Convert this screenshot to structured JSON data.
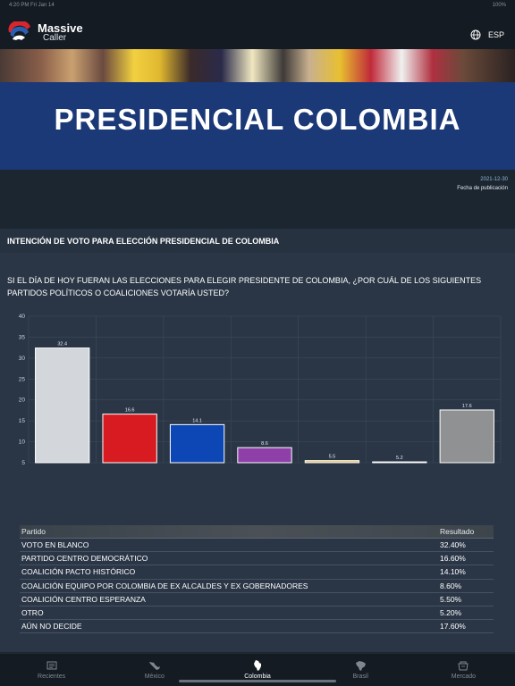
{
  "status": {
    "time": "4:20 PM   Fri Jan 14",
    "battery": "100%"
  },
  "brand": {
    "line1": "Massive",
    "line2": "Caller"
  },
  "header": {
    "language": "ESP"
  },
  "banner": {
    "title": "PRESIDENCIAL COLOMBIA"
  },
  "publication": {
    "date": "2021-12-30",
    "label": "Fecha de publicación"
  },
  "section": {
    "title": "INTENCIÓN DE VOTO PARA ELECCIÓN PRESIDENCIAL DE COLOMBIA"
  },
  "question": "SI EL DÍA DE HOY FUERAN LAS ELECCIONES PARA ELEGIR PRESIDENTE DE COLOMBIA, ¿POR CUÁL DE LOS SIGUIENTES PARTIDOS POLÍTICOS O COALICIONES VOTARÍA USTED?",
  "chart_data": {
    "type": "bar",
    "categories": [
      "VOTO EN BLANCO",
      "PARTIDO CENTRO DEMOCRÁTICO",
      "COALICIÓN PACTO HISTÓRICO",
      "COALICIÓN EQUIPO POR COLOMBIA DE EX ALCALDES Y EX GOBERNADORES",
      "COALICIÓN CENTRO ESPERANZA",
      "OTRO",
      "AÚN NO DECIDE"
    ],
    "values": [
      32.4,
      16.6,
      14.1,
      8.6,
      5.5,
      5.2,
      17.6
    ],
    "data_labels": [
      "32.4",
      "16.6",
      "14.1",
      "8.6",
      "5.5",
      "5.2",
      "17.6"
    ],
    "colors": [
      "#d3d7dc",
      "#d81b20",
      "#0d47b5",
      "#8e3fa8",
      "#e8c56a",
      "#f4f6f8",
      "#8f9192"
    ],
    "yticks": [
      "40",
      "35",
      "30",
      "25",
      "20",
      "15",
      "10",
      "5"
    ],
    "ylim": [
      5,
      40
    ],
    "grid": true,
    "title": "",
    "xlabel": "",
    "ylabel": ""
  },
  "table": {
    "headers": {
      "party": "Partido",
      "result": "Resultado"
    },
    "rows": [
      {
        "party": "VOTO EN BLANCO",
        "result": "32.40%"
      },
      {
        "party": "PARTIDO CENTRO DEMOCRÁTICO",
        "result": "16.60%"
      },
      {
        "party": "COALICIÓN PACTO HISTÓRICO",
        "result": "14.10%"
      },
      {
        "party": "COALICIÓN EQUIPO POR COLOMBIA DE EX ALCALDES Y EX GOBERNADORES",
        "result": "8.60%"
      },
      {
        "party": "COALICIÓN CENTRO ESPERANZA",
        "result": "5.50%"
      },
      {
        "party": "OTRO",
        "result": "5.20%"
      },
      {
        "party": "AÚN NO DECIDE",
        "result": "17.60%"
      }
    ]
  },
  "tabs": [
    {
      "label": "Recientes",
      "icon": "newspaper-icon"
    },
    {
      "label": "México",
      "icon": "mexico-map-icon"
    },
    {
      "label": "Colombia",
      "icon": "colombia-map-icon",
      "active": true
    },
    {
      "label": "Brasil",
      "icon": "brazil-map-icon"
    },
    {
      "label": "Mercado",
      "icon": "market-icon"
    }
  ]
}
